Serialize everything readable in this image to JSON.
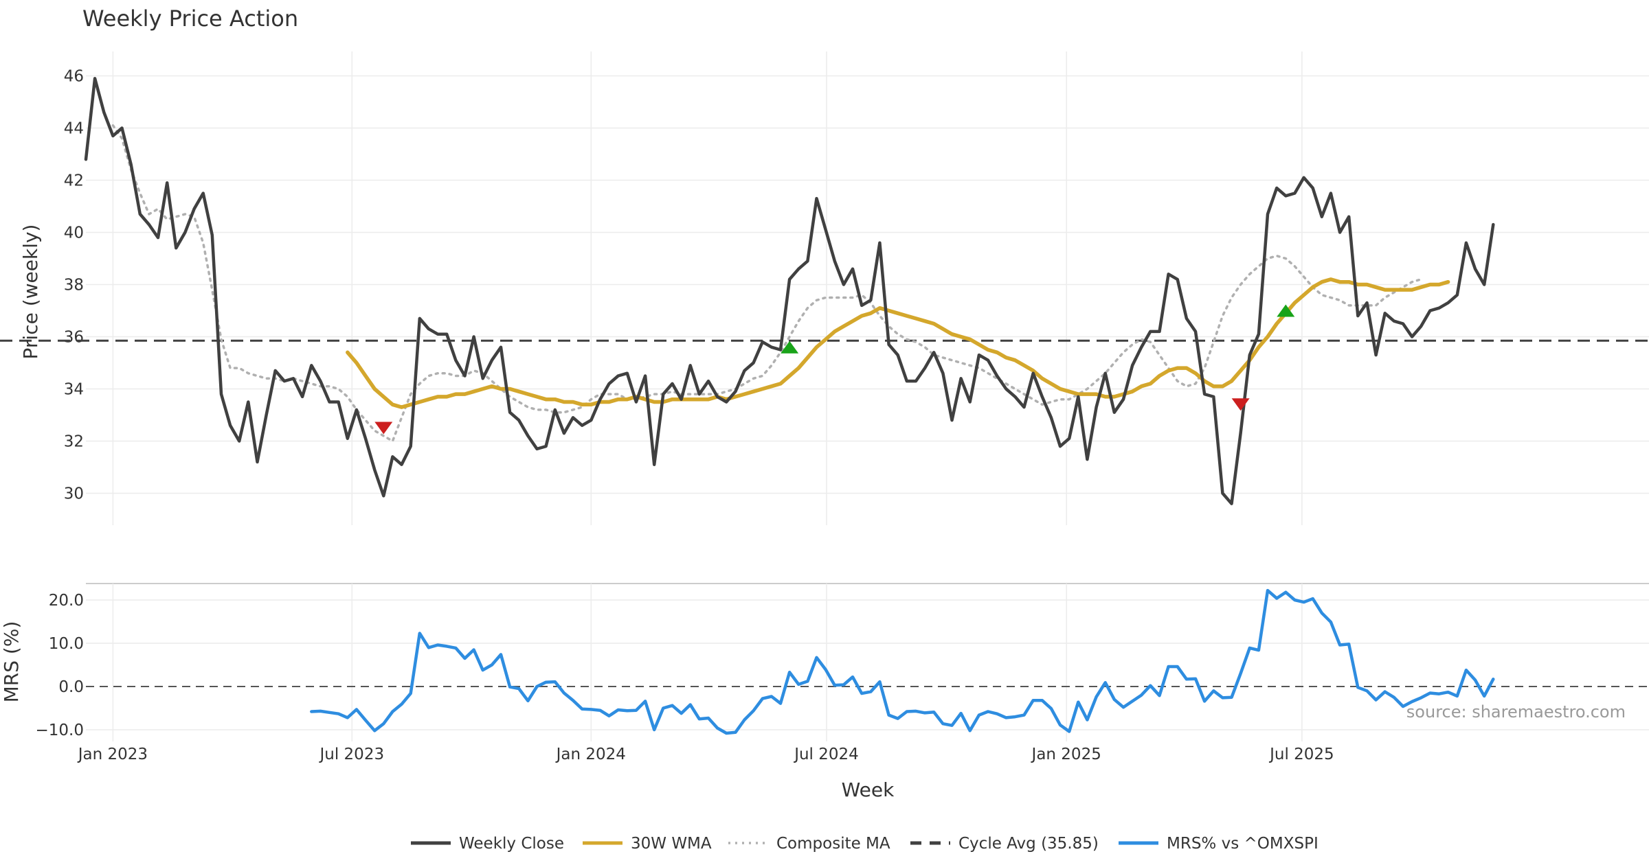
{
  "chart_data": {
    "type": "line",
    "title": "Weekly Price Action",
    "xlabel": "Week",
    "source": "source: sharemaestro.com",
    "x_ticks": [
      "Jan 2023",
      "Jul 2023",
      "Jan 2024",
      "Jul 2024",
      "Jan 2025",
      "Jul 2025"
    ],
    "price_panel": {
      "ylabel": "Price (weekly)",
      "ylim": [
        28.8,
        47.2
      ],
      "y_ticks": [
        "30",
        "32",
        "34",
        "36",
        "38",
        "40",
        "42",
        "44",
        "46"
      ],
      "cycle_avg": 35.85,
      "series": [
        {
          "name": "Weekly Close",
          "color": "#404040",
          "style": "solid",
          "start_week": 0,
          "values": [
            42.8,
            45.9,
            44.6,
            43.7,
            44.0,
            42.6,
            40.7,
            40.3,
            39.8,
            41.9,
            39.4,
            40.0,
            40.9,
            41.5,
            39.9,
            33.8,
            32.6,
            32.0,
            33.5,
            31.2,
            33.0,
            34.7,
            34.3,
            34.4,
            33.7,
            34.9,
            34.3,
            33.5,
            33.5,
            32.1,
            33.2,
            32.1,
            30.9,
            29.9,
            31.4,
            31.1,
            31.8,
            36.7,
            36.3,
            36.1,
            36.1,
            35.1,
            34.5,
            36.0,
            34.4,
            35.1,
            35.6,
            33.1,
            32.8,
            32.2,
            31.7,
            31.8,
            33.2,
            32.3,
            32.9,
            32.6,
            32.8,
            33.6,
            34.2,
            34.5,
            34.6,
            33.5,
            34.5,
            31.1,
            33.8,
            34.2,
            33.6,
            34.9,
            33.8,
            34.3,
            33.7,
            33.5,
            33.9,
            34.7,
            35.0,
            35.8,
            35.6,
            35.5,
            38.2,
            38.6,
            38.9,
            41.3,
            40.1,
            38.9,
            38.0,
            38.6,
            37.2,
            37.4,
            39.6,
            35.7,
            35.3,
            34.3,
            34.3,
            34.8,
            35.4,
            34.6,
            32.8,
            34.4,
            33.5,
            35.3,
            35.1,
            34.5,
            34.0,
            33.7,
            33.3,
            34.6,
            33.7,
            32.9,
            31.8,
            32.1,
            33.7,
            31.3,
            33.3,
            34.6,
            33.1,
            33.6,
            34.9,
            35.6,
            36.2,
            36.2,
            38.4,
            38.2,
            36.7,
            36.2,
            33.8,
            33.7,
            30.0,
            29.6,
            32.3,
            35.3,
            36.1,
            40.7,
            41.7,
            41.4,
            41.5,
            42.1,
            41.7,
            40.6,
            41.5,
            40.0,
            40.6,
            36.8,
            37.3,
            35.3,
            36.9,
            36.6,
            36.5,
            36.0,
            36.4,
            37.0,
            37.1,
            37.3,
            37.6,
            39.6,
            38.6,
            38.0,
            40.3
          ]
        },
        {
          "name": "30W WMA",
          "color": "#d4a72c",
          "style": "solid",
          "start_week": 29,
          "values": [
            35.4,
            35.0,
            34.5,
            34.0,
            33.7,
            33.4,
            33.3,
            33.4,
            33.5,
            33.6,
            33.7,
            33.7,
            33.8,
            33.8,
            33.9,
            34.0,
            34.1,
            34.0,
            34.0,
            33.9,
            33.8,
            33.7,
            33.6,
            33.6,
            33.5,
            33.5,
            33.4,
            33.4,
            33.5,
            33.5,
            33.6,
            33.6,
            33.7,
            33.6,
            33.5,
            33.5,
            33.6,
            33.6,
            33.6,
            33.6,
            33.6,
            33.7,
            33.6,
            33.7,
            33.8,
            33.9,
            34.0,
            34.1,
            34.2,
            34.5,
            34.8,
            35.2,
            35.6,
            35.9,
            36.2,
            36.4,
            36.6,
            36.8,
            36.9,
            37.1,
            37.0,
            36.9,
            36.8,
            36.7,
            36.6,
            36.5,
            36.3,
            36.1,
            36.0,
            35.9,
            35.7,
            35.5,
            35.4,
            35.2,
            35.1,
            34.9,
            34.7,
            34.4,
            34.2,
            34.0,
            33.9,
            33.8,
            33.8,
            33.8,
            33.7,
            33.7,
            33.8,
            33.9,
            34.1,
            34.2,
            34.5,
            34.7,
            34.8,
            34.8,
            34.6,
            34.3,
            34.1,
            34.1,
            34.3,
            34.7,
            35.1,
            35.6,
            36.0,
            36.5,
            36.9,
            37.3,
            37.6,
            37.9,
            38.1,
            38.2,
            38.1,
            38.1,
            38.0,
            38.0,
            37.9,
            37.8,
            37.8,
            37.8,
            37.8,
            37.9,
            38.0,
            38.0,
            38.1
          ]
        },
        {
          "name": "Composite MA",
          "color": "#b0b0b0",
          "style": "dotted",
          "start_week": 3,
          "values": [
            44.1,
            43.6,
            42.4,
            41.5,
            40.7,
            40.9,
            40.5,
            40.6,
            40.7,
            40.6,
            39.6,
            37.8,
            35.9,
            34.8,
            34.8,
            34.6,
            34.5,
            34.4,
            34.4,
            34.3,
            34.4,
            34.3,
            34.2,
            34.1,
            34.1,
            34.0,
            33.7,
            33.2,
            32.8,
            32.4,
            32.2,
            32.0,
            32.9,
            33.8,
            34.2,
            34.5,
            34.6,
            34.6,
            34.5,
            34.5,
            34.7,
            34.6,
            34.3,
            34.0,
            33.7,
            33.5,
            33.3,
            33.2,
            33.2,
            33.1,
            33.1,
            33.2,
            33.3,
            33.6,
            33.8,
            33.8,
            33.8,
            33.6,
            33.6,
            33.7,
            33.8,
            33.8,
            33.9,
            33.8,
            33.8,
            33.8,
            33.8,
            33.8,
            33.9,
            34.0,
            34.2,
            34.4,
            34.5,
            34.9,
            35.4,
            36.0,
            36.6,
            37.1,
            37.4,
            37.5,
            37.5,
            37.5,
            37.5,
            37.6,
            37.3,
            36.8,
            36.4,
            36.1,
            35.9,
            35.8,
            35.6,
            35.3,
            35.2,
            35.1,
            35.0,
            34.9,
            34.8,
            34.6,
            34.4,
            34.2,
            34.0,
            33.8,
            33.6,
            33.4,
            33.5,
            33.6,
            33.6,
            33.8,
            34.0,
            34.3,
            34.6,
            35.0,
            35.4,
            35.7,
            35.9,
            35.8,
            35.3,
            34.8,
            34.3,
            34.1,
            34.2,
            34.8,
            35.8,
            36.8,
            37.5,
            38.0,
            38.4,
            38.7,
            39.0,
            39.1,
            39.0,
            38.7,
            38.3,
            37.9,
            37.6,
            37.5,
            37.4,
            37.2,
            37.2,
            37.2,
            37.2,
            37.5,
            37.7,
            37.9,
            38.1,
            38.2
          ]
        }
      ],
      "signals": [
        {
          "type": "sell",
          "week": 33,
          "value": 32.5,
          "color": "#cc1f1f"
        },
        {
          "type": "buy",
          "week": 78,
          "value": 35.6,
          "color": "#19a319"
        },
        {
          "type": "sell",
          "week": 128,
          "value": 33.4,
          "color": "#cc1f1f"
        },
        {
          "type": "buy",
          "week": 133,
          "value": 37.0,
          "color": "#19a319"
        }
      ]
    },
    "mrs_panel": {
      "ylabel": "MRS (%)",
      "ylim": [
        -12.5,
        24.0
      ],
      "y_ticks": [
        "20.0",
        "10.0",
        "0.0",
        "−10.0"
      ],
      "series": [
        {
          "name": "MRS% vs ^OMXSPI",
          "color": "#2e8de0",
          "style": "solid",
          "start_week": 25,
          "values": [
            -5.8,
            -5.7,
            -6.0,
            -6.3,
            -7.2,
            -5.3,
            -7.8,
            -10.2,
            -8.6,
            -5.8,
            -4.1,
            -1.6,
            12.3,
            9.0,
            9.6,
            9.3,
            8.9,
            6.5,
            8.5,
            3.8,
            5.0,
            7.4,
            -0.1,
            -0.5,
            -3.3,
            0.0,
            1.0,
            1.1,
            -1.5,
            -3.2,
            -5.2,
            -5.3,
            -5.5,
            -6.8,
            -5.4,
            -5.6,
            -5.5,
            -3.4,
            -10.0,
            -5.0,
            -4.4,
            -6.2,
            -4.2,
            -7.5,
            -7.3,
            -9.6,
            -10.8,
            -10.6,
            -7.7,
            -5.6,
            -2.8,
            -2.3,
            -3.9,
            3.3,
            0.5,
            1.2,
            6.7,
            3.9,
            0.3,
            0.4,
            2.2,
            -1.6,
            -1.2,
            1.1,
            -6.6,
            -7.4,
            -5.8,
            -5.7,
            -6.1,
            -5.9,
            -8.6,
            -9.0,
            -6.2,
            -10.2,
            -6.6,
            -5.8,
            -6.3,
            -7.2,
            -7.0,
            -6.6,
            -3.2,
            -3.2,
            -5.1,
            -8.9,
            -10.4,
            -3.6,
            -7.7,
            -2.4,
            0.9,
            -3.0,
            -4.8,
            -3.4,
            -2.0,
            0.2,
            -2.1,
            4.6,
            4.6,
            1.7,
            1.8,
            -3.4,
            -1.0,
            -2.6,
            -2.5,
            3.0,
            8.9,
            8.4,
            22.2,
            20.4,
            21.8,
            20.0,
            19.5,
            20.3,
            17.0,
            14.9,
            9.6,
            9.8,
            -0.2,
            -1.0,
            -3.1,
            -1.2,
            -2.5,
            -4.6,
            -3.5,
            -2.6,
            -1.5,
            -1.7,
            -1.3,
            -2.2,
            3.8,
            1.5,
            -2.2,
            1.7
          ]
        }
      ]
    },
    "legend": [
      {
        "label": "Weekly Close",
        "color": "#404040",
        "style": "solid"
      },
      {
        "label": "30W WMA",
        "color": "#d4a72c",
        "style": "solid"
      },
      {
        "label": "Composite MA",
        "color": "#b0b0b0",
        "style": "dotted"
      },
      {
        "label": "Cycle Avg (35.85)",
        "color": "#404040",
        "style": "dashed"
      },
      {
        "label": "MRS% vs ^OMXSPI",
        "color": "#2e8de0",
        "style": "solid"
      }
    ]
  }
}
